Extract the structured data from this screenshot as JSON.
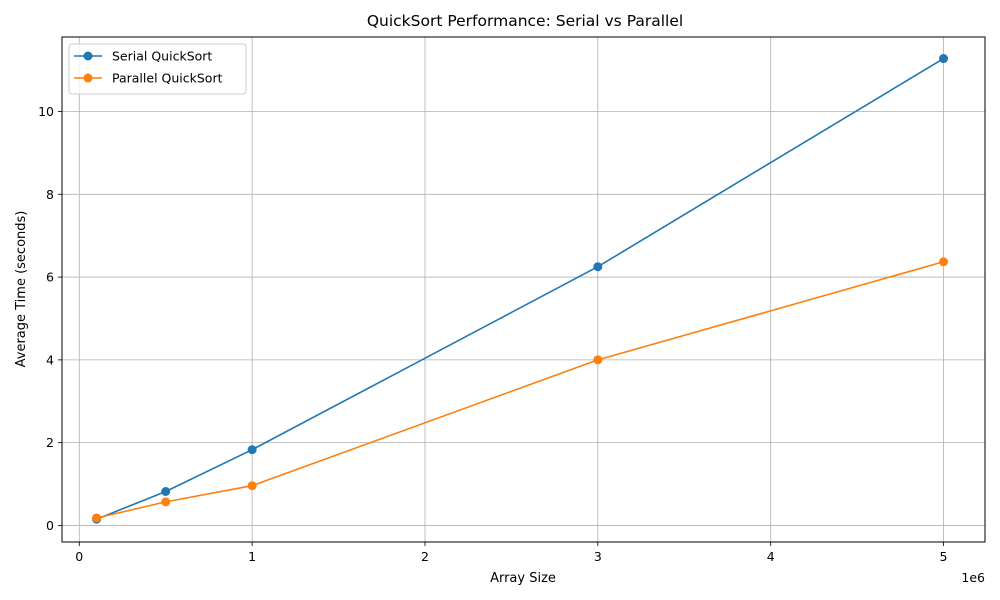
{
  "chart_data": {
    "type": "line",
    "title": "QuickSort Performance: Serial vs Parallel",
    "xlabel": "Array Size",
    "ylabel": "Average Time (seconds)",
    "x_offset_label": "1e6",
    "x": [
      100000,
      500000,
      1000000,
      3000000,
      5000000
    ],
    "x_ticks": [
      0,
      1000000,
      2000000,
      3000000,
      4000000,
      5000000
    ],
    "x_tick_labels": [
      "0",
      "1",
      "2",
      "3",
      "4",
      "5"
    ],
    "y_ticks": [
      0,
      2,
      4,
      6,
      8,
      10
    ],
    "y_tick_labels": [
      "0",
      "2",
      "4",
      "6",
      "8",
      "10"
    ],
    "xlim": [
      -100000,
      5240000
    ],
    "ylim": [
      -0.4,
      11.8
    ],
    "grid": true,
    "legend_position": "top-left",
    "series": [
      {
        "name": "Serial QuickSort",
        "color": "#1f77b4",
        "marker": "circle",
        "values": [
          0.15,
          0.82,
          1.83,
          6.25,
          11.28
        ]
      },
      {
        "name": "Parallel QuickSort",
        "color": "#ff7f0e",
        "marker": "circle",
        "values": [
          0.18,
          0.57,
          0.96,
          4.0,
          6.37
        ]
      }
    ]
  }
}
